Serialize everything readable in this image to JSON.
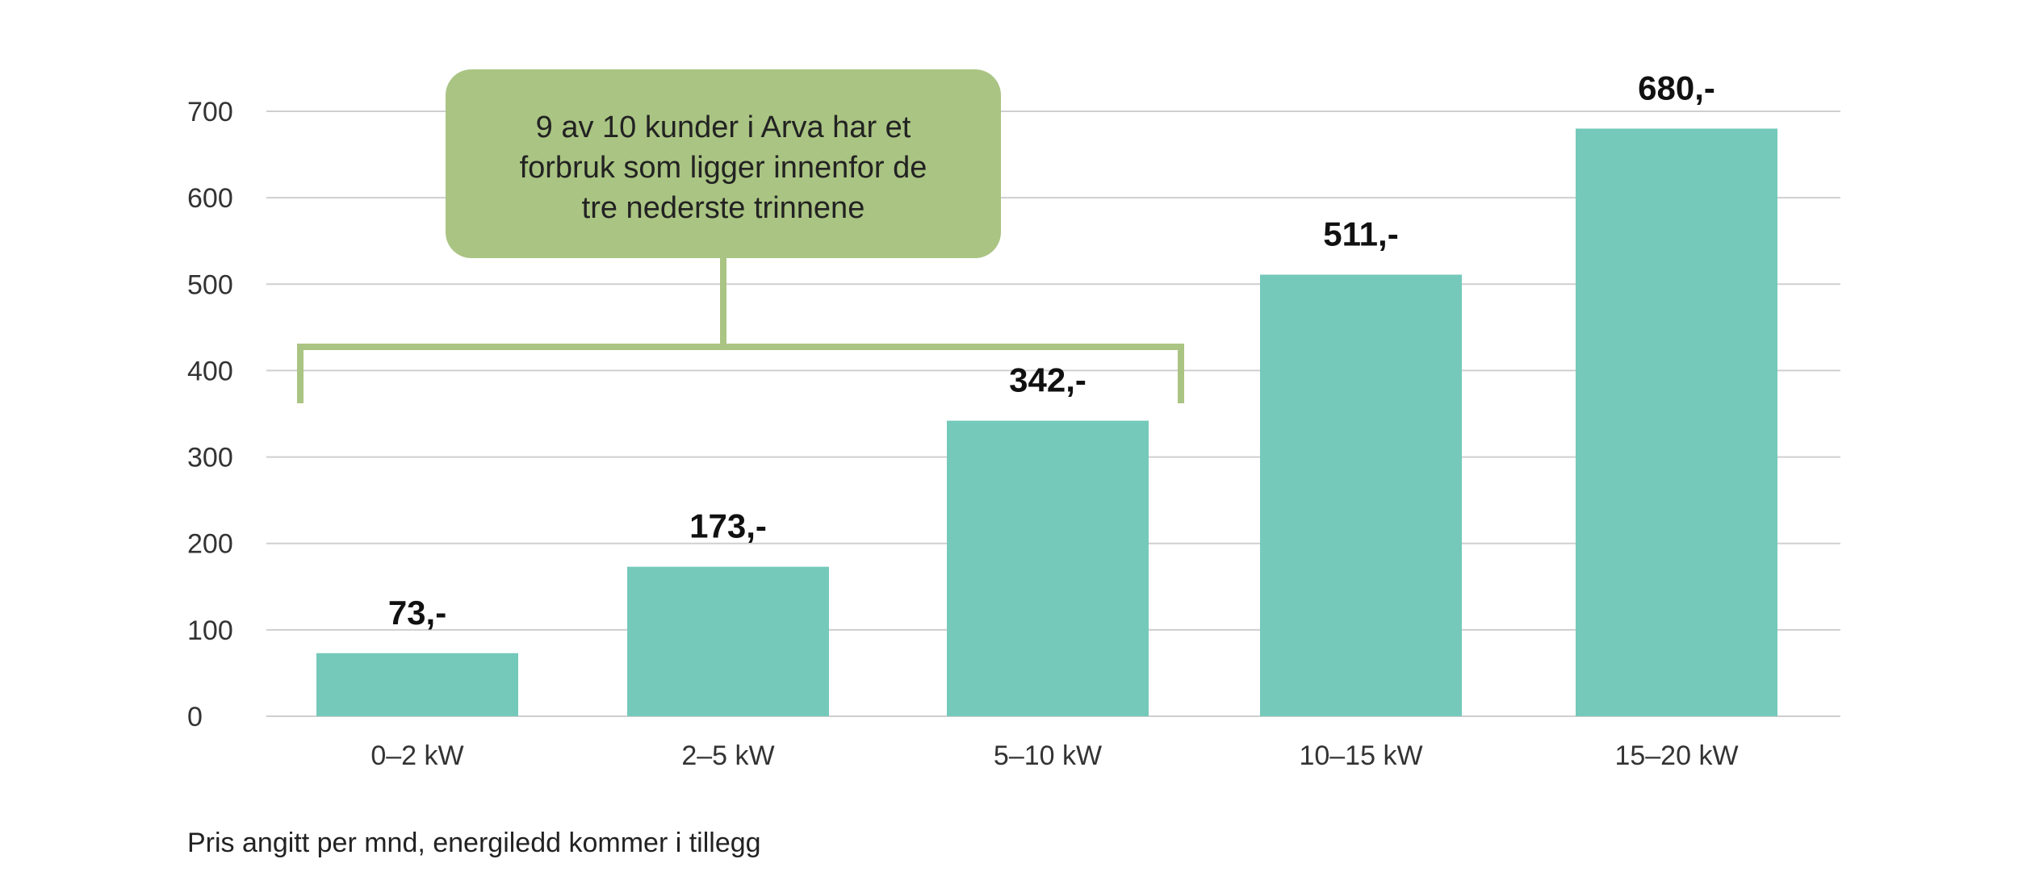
{
  "chart_data": {
    "type": "bar",
    "categories": [
      "0–2 kW",
      "2–5 kW",
      "5–10 kW",
      "10–15  kW",
      "15–20  kW"
    ],
    "values": [
      73,
      173,
      342,
      511,
      680
    ],
    "value_labels": [
      "73,-",
      "173,-",
      "342,-",
      "511,-",
      "680,-"
    ],
    "yticks": [
      0,
      100,
      200,
      300,
      400,
      500,
      600,
      700
    ],
    "ylim": [
      0,
      700
    ],
    "grid": true,
    "colors": {
      "bar": "#74C9BA",
      "callout": "#AAC483",
      "grid": "#cfcfcf"
    },
    "annotation": {
      "lines": [
        "9 av 10 kunder i Arva har et",
        "forbruk som ligger innenfor de",
        "tre nederste trinnene"
      ],
      "covers_categories": [
        0,
        2
      ]
    },
    "footnote": "Pris angitt per mnd, energiledd kommer i tillegg"
  }
}
